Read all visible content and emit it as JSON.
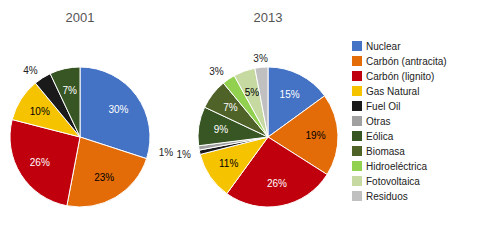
{
  "chart_data": [
    {
      "type": "pie",
      "title": "2001",
      "categories": [
        "Nuclear",
        "Carbón (antracita)",
        "Carbón (lignito)",
        "Gas Natural",
        "Fuel Oil",
        "Eólica"
      ],
      "values": [
        30,
        23,
        26,
        10,
        4,
        7
      ],
      "value_labels": [
        "30%",
        "23%",
        "26%",
        "10%",
        "4%",
        "7%"
      ],
      "colors": [
        "#4472C4",
        "#E36C09",
        "#C0000C",
        "#F5C300",
        "#1A1A1A",
        "#375623"
      ],
      "data_labels": true
    },
    {
      "type": "pie",
      "title": "2013",
      "categories": [
        "Nuclear",
        "Carbón (antracita)",
        "Carbón (lignito)",
        "Gas Natural",
        "Fuel Oil",
        "Otras",
        "Eólica",
        "Biomasa",
        "Hidroeléctrica",
        "Fotovoltaica",
        "Residuos"
      ],
      "values": [
        15,
        19,
        26,
        11,
        1,
        1,
        9,
        7,
        3,
        5,
        3
      ],
      "value_labels": [
        "15%",
        "19%",
        "26%",
        "11%",
        "1%",
        "1%",
        "9%",
        "7%",
        "3%",
        "5%",
        "3%"
      ],
      "colors": [
        "#4472C4",
        "#E36C09",
        "#C0000C",
        "#F5C300",
        "#1A1A1A",
        "#A0A0A0",
        "#375623",
        "#4F6228",
        "#92D050",
        "#C6D9A0",
        "#C0C0C0"
      ],
      "data_labels": true,
      "legend": "right"
    }
  ]
}
